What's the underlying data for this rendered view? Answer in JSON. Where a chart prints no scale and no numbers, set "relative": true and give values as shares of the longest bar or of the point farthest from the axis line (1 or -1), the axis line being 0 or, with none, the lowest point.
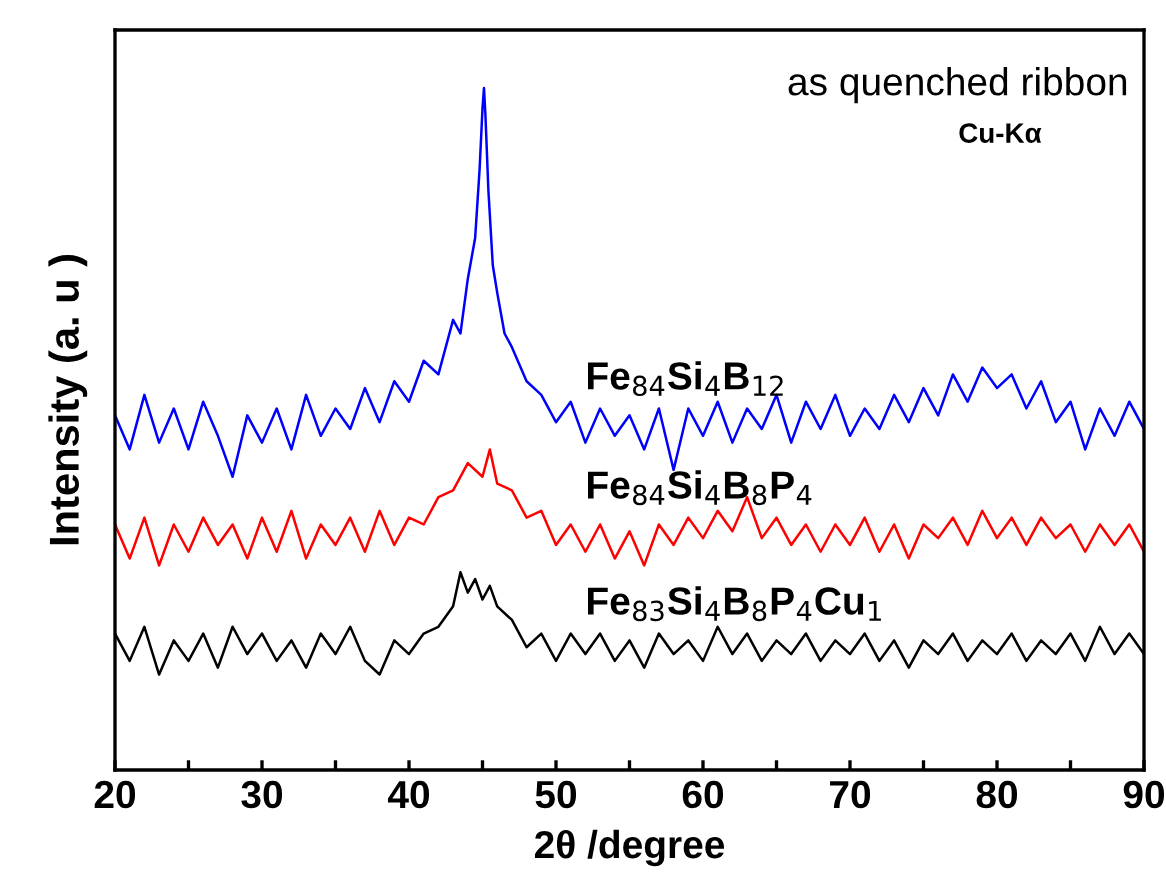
{
  "chart_data": {
    "type": "line",
    "relative": true,
    "xlabel": "2θ /degree",
    "ylabel": "Intensity (a. u )",
    "annotations": [
      "as quenched ribbon",
      "Cu-Kα"
    ],
    "xlim": [
      20,
      90
    ],
    "xticks": [
      20,
      {
        "value": 25,
        "label": null
      },
      30,
      {
        "value": 35,
        "label": null
      },
      40,
      {
        "value": 45,
        "label": null
      },
      50,
      {
        "value": 55,
        "label": null
      },
      60,
      {
        "value": 65,
        "label": null
      },
      70,
      {
        "value": 75,
        "label": null
      },
      80,
      {
        "value": 85,
        "label": null
      },
      90
    ],
    "tick_labels": "x",
    "grid": false,
    "legend": false,
    "marker": "none",
    "line_style": "solid",
    "series": [
      {
        "name": "Fe$_{84}$Si$_{4}$B$_{12}$",
        "color": "#0000ff",
        "x": [
          20,
          21,
          22,
          23,
          24,
          25,
          26,
          27,
          28,
          29,
          30,
          31,
          32,
          33,
          34,
          35,
          36,
          37,
          38,
          39,
          40,
          41,
          42,
          43,
          43.5,
          44,
          44.5,
          44.8,
          45,
          45.1,
          45.2,
          45.4,
          45.7,
          46,
          46.5,
          47,
          48,
          49,
          50,
          51,
          52,
          53,
          54,
          55,
          56,
          57,
          58,
          59,
          60,
          61,
          62,
          63,
          64,
          65,
          66,
          67,
          68,
          69,
          70,
          71,
          72,
          73,
          74,
          75,
          76,
          77,
          78,
          79,
          80,
          81,
          82,
          83,
          84,
          85,
          86,
          87,
          88,
          89,
          90
        ],
        "values": [
          0.52,
          0.47,
          0.55,
          0.48,
          0.53,
          0.47,
          0.54,
          0.49,
          0.43,
          0.52,
          0.48,
          0.53,
          0.47,
          0.55,
          0.49,
          0.53,
          0.5,
          0.56,
          0.51,
          0.57,
          0.54,
          0.6,
          0.58,
          0.66,
          0.64,
          0.72,
          0.78,
          0.88,
          0.97,
          1,
          0.96,
          0.85,
          0.74,
          0.7,
          0.64,
          0.62,
          0.57,
          0.55,
          0.51,
          0.54,
          0.48,
          0.53,
          0.49,
          0.52,
          0.47,
          0.53,
          0.44,
          0.53,
          0.49,
          0.54,
          0.48,
          0.53,
          0.5,
          0.55,
          0.48,
          0.54,
          0.5,
          0.55,
          0.49,
          0.53,
          0.5,
          0.55,
          0.51,
          0.56,
          0.52,
          0.58,
          0.54,
          0.59,
          0.56,
          0.58,
          0.53,
          0.57,
          0.51,
          0.54,
          0.47,
          0.53,
          0.49,
          0.54,
          0.5
        ]
      },
      {
        "name": "Fe$_{84}$Si$_{4}$B$_{8}$P$_{4}$",
        "color": "#ff0000",
        "x": [
          20,
          21,
          22,
          23,
          24,
          25,
          26,
          27,
          28,
          29,
          30,
          31,
          32,
          33,
          34,
          35,
          36,
          37,
          38,
          39,
          40,
          41,
          42,
          43,
          44,
          45,
          45.5,
          46,
          47,
          48,
          49,
          50,
          51,
          52,
          53,
          54,
          55,
          56,
          57,
          58,
          59,
          60,
          61,
          62,
          63,
          64,
          65,
          66,
          67,
          68,
          69,
          70,
          71,
          72,
          73,
          74,
          75,
          76,
          77,
          78,
          79,
          80,
          81,
          82,
          83,
          84,
          85,
          86,
          87,
          88,
          89,
          90
        ],
        "values": [
          0.36,
          0.31,
          0.37,
          0.3,
          0.36,
          0.32,
          0.37,
          0.33,
          0.36,
          0.31,
          0.37,
          0.32,
          0.38,
          0.31,
          0.36,
          0.33,
          0.37,
          0.32,
          0.38,
          0.33,
          0.37,
          0.36,
          0.4,
          0.41,
          0.45,
          0.43,
          0.47,
          0.42,
          0.41,
          0.37,
          0.38,
          0.33,
          0.36,
          0.32,
          0.36,
          0.31,
          0.35,
          0.3,
          0.36,
          0.33,
          0.37,
          0.34,
          0.38,
          0.35,
          0.4,
          0.34,
          0.37,
          0.33,
          0.36,
          0.32,
          0.36,
          0.33,
          0.37,
          0.32,
          0.36,
          0.31,
          0.36,
          0.34,
          0.37,
          0.33,
          0.38,
          0.34,
          0.37,
          0.33,
          0.37,
          0.34,
          0.36,
          0.32,
          0.36,
          0.33,
          0.36,
          0.32
        ]
      },
      {
        "name": "Fe$_{83}$Si$_{4}$B$_{8}$P$_{4}$Cu$_{1}$",
        "color": "#000000",
        "x": [
          20,
          21,
          22,
          23,
          24,
          25,
          26,
          27,
          28,
          29,
          30,
          31,
          32,
          33,
          34,
          35,
          36,
          37,
          38,
          39,
          40,
          41,
          42,
          43,
          43.5,
          44,
          44.5,
          45,
          45.5,
          46,
          47,
          48,
          49,
          50,
          51,
          52,
          53,
          54,
          55,
          56,
          57,
          58,
          59,
          60,
          61,
          62,
          63,
          64,
          65,
          66,
          67,
          68,
          69,
          70,
          71,
          72,
          73,
          74,
          75,
          76,
          77,
          78,
          79,
          80,
          81,
          82,
          83,
          84,
          85,
          86,
          87,
          88,
          89,
          90
        ],
        "values": [
          0.2,
          0.16,
          0.21,
          0.14,
          0.19,
          0.16,
          0.2,
          0.15,
          0.21,
          0.17,
          0.2,
          0.16,
          0.19,
          0.15,
          0.2,
          0.17,
          0.21,
          0.16,
          0.14,
          0.19,
          0.17,
          0.2,
          0.21,
          0.24,
          0.29,
          0.26,
          0.28,
          0.25,
          0.27,
          0.24,
          0.22,
          0.18,
          0.2,
          0.16,
          0.2,
          0.17,
          0.2,
          0.16,
          0.19,
          0.15,
          0.2,
          0.17,
          0.19,
          0.16,
          0.21,
          0.17,
          0.2,
          0.16,
          0.19,
          0.17,
          0.2,
          0.16,
          0.19,
          0.17,
          0.2,
          0.16,
          0.19,
          0.15,
          0.19,
          0.17,
          0.2,
          0.16,
          0.19,
          0.17,
          0.2,
          0.16,
          0.19,
          0.17,
          0.2,
          0.16,
          0.21,
          0.17,
          0.2,
          0.17
        ]
      }
    ]
  }
}
